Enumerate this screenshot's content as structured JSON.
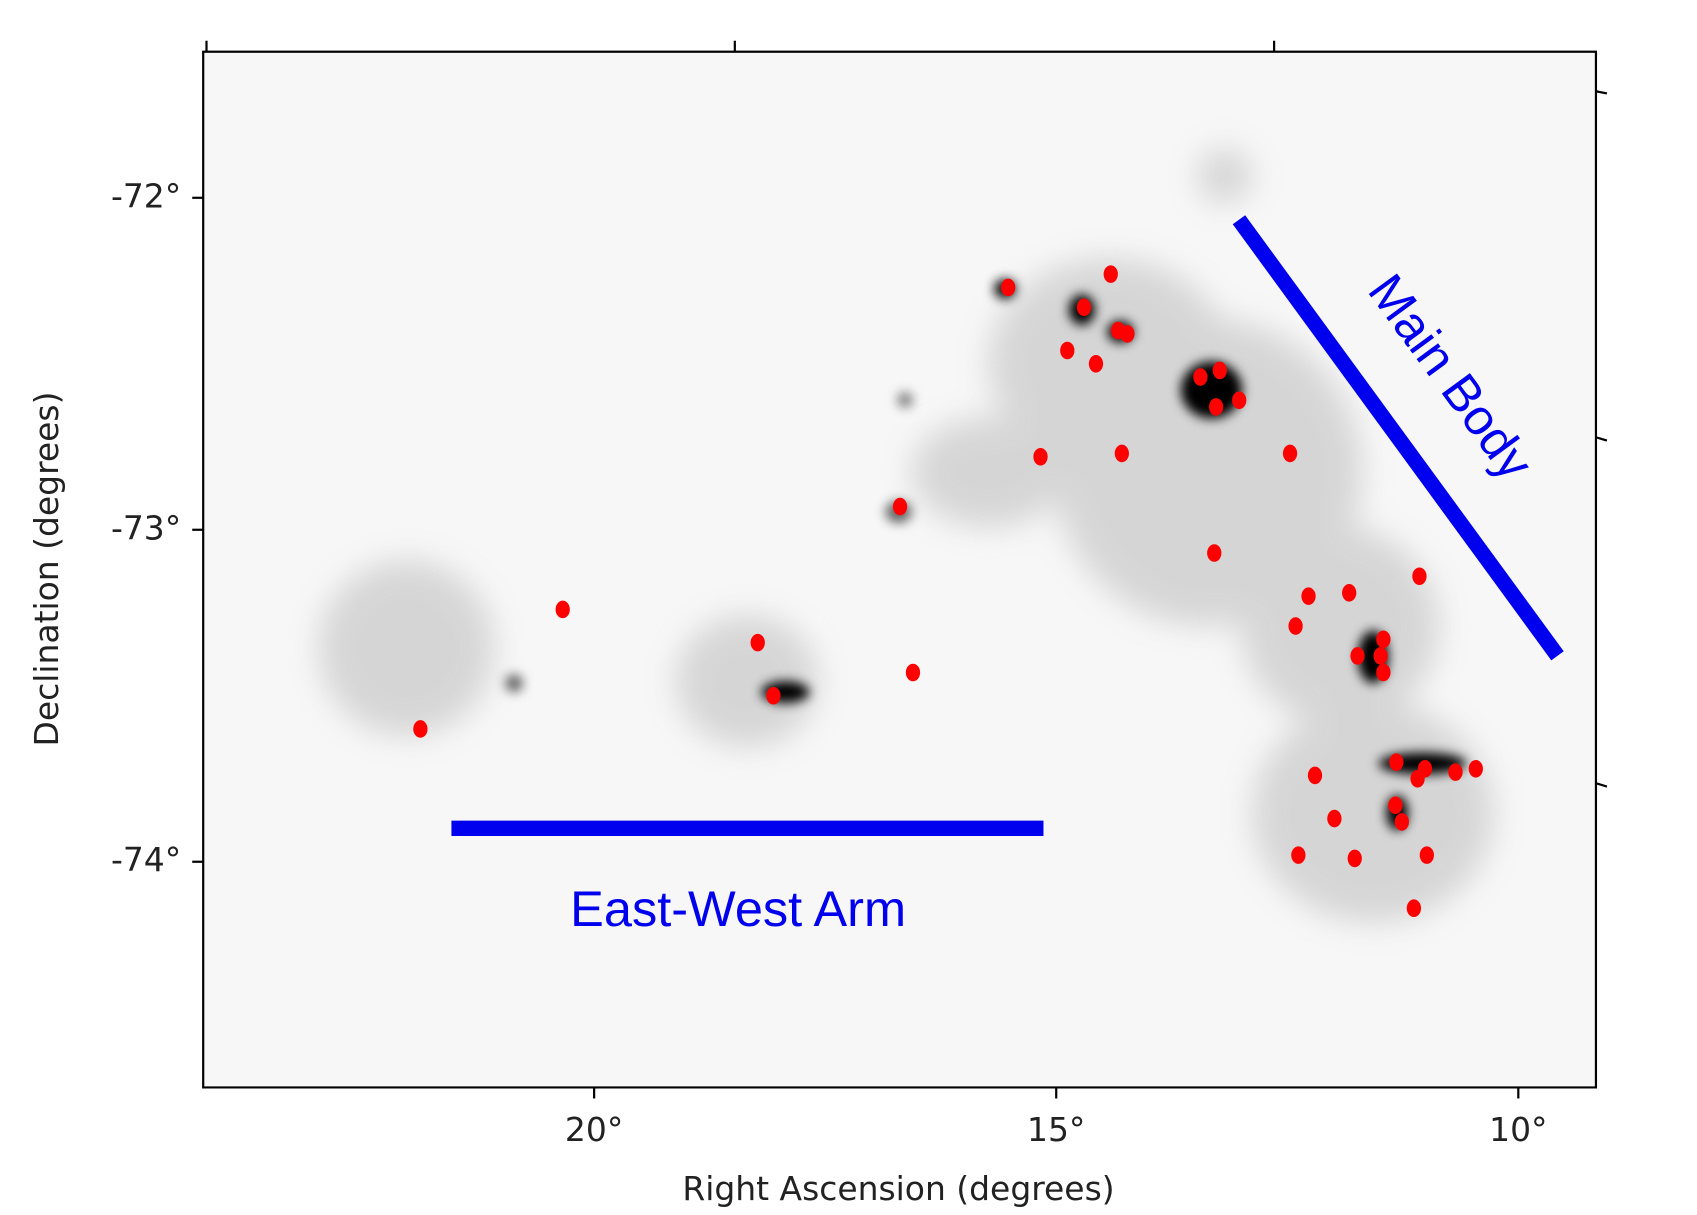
{
  "chart_data": {
    "type": "scatter",
    "xlabel": "Right Ascension (degrees)",
    "ylabel": "Declination (degrees)",
    "annotations": [
      "Main Body",
      "East-West Arm"
    ],
    "color": "#ff0000",
    "xlim": [
      24.23,
      9.16
    ],
    "ylim": [
      -74.68,
      -71.56
    ],
    "xticks": [
      {
        "value": 20,
        "label": "20°"
      },
      {
        "value": 15,
        "label": "15°"
      },
      {
        "value": 10,
        "label": "10°"
      }
    ],
    "yticks": [
      {
        "value": -72,
        "label": "-72°"
      },
      {
        "value": -73,
        "label": "-73°"
      },
      {
        "value": -74,
        "label": "-74°"
      }
    ],
    "x": [
      15.52,
      14.41,
      14.7,
      14.33,
      14.23,
      14.88,
      14.57,
      13.44,
      13.23,
      13.02,
      13.27,
      15.17,
      14.29,
      12.47,
      16.69,
      13.29,
      11.07,
      12.27,
      11.83,
      12.41,
      11.46,
      11.74,
      11.49,
      11.46,
      20.34,
      18.23,
      16.55,
      18.06,
      21.88,
      11.32,
      11.01,
      11.09,
      10.68,
      10.46,
      12.2,
      11.33,
      11.26,
      11.99,
      12.38,
      11.77,
      10.99,
      11.13
    ],
    "values": [
      -72.27,
      -72.23,
      -72.33,
      -72.4,
      -72.41,
      -72.46,
      -72.5,
      -72.54,
      -72.52,
      -72.61,
      -72.63,
      -72.78,
      -72.77,
      -72.77,
      -72.93,
      -73.07,
      -73.14,
      -73.2,
      -73.19,
      -73.29,
      -73.33,
      -73.38,
      -73.38,
      -73.43,
      -73.24,
      -73.34,
      -73.43,
      -73.5,
      -73.6,
      -73.7,
      -73.72,
      -73.75,
      -73.73,
      -73.72,
      -73.74,
      -73.83,
      -73.88,
      -73.87,
      -73.98,
      -73.99,
      -73.98,
      -74.14
    ]
  }
}
